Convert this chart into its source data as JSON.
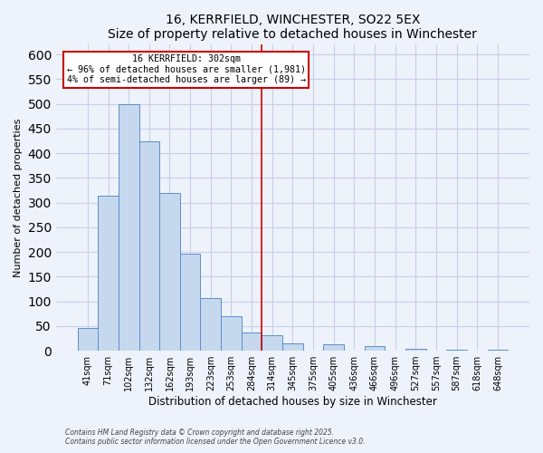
{
  "title": "16, KERRFIELD, WINCHESTER, SO22 5EX",
  "subtitle": "Size of property relative to detached houses in Winchester",
  "xlabel": "Distribution of detached houses by size in Winchester",
  "ylabel": "Number of detached properties",
  "bar_labels": [
    "41sqm",
    "71sqm",
    "102sqm",
    "132sqm",
    "162sqm",
    "193sqm",
    "223sqm",
    "253sqm",
    "284sqm",
    "314sqm",
    "345sqm",
    "375sqm",
    "405sqm",
    "436sqm",
    "466sqm",
    "496sqm",
    "527sqm",
    "557sqm",
    "587sqm",
    "618sqm",
    "648sqm"
  ],
  "bar_values": [
    46,
    314,
    499,
    424,
    320,
    196,
    106,
    69,
    37,
    31,
    14,
    0,
    13,
    0,
    9,
    0,
    4,
    0,
    2,
    0,
    2
  ],
  "bar_color": "#c5d8ee",
  "bar_edge_color": "#5b8fc9",
  "vline_color": "#cc0000",
  "annotation_title": "16 KERRFIELD: 302sqm",
  "annotation_line1": "← 96% of detached houses are smaller (1,981)",
  "annotation_line2": "4% of semi-detached houses are larger (89) →",
  "annotation_box_edge": "#cc0000",
  "ylim": [
    0,
    620
  ],
  "yticks": [
    0,
    50,
    100,
    150,
    200,
    250,
    300,
    350,
    400,
    450,
    500,
    550,
    600
  ],
  "footer1": "Contains HM Land Registry data © Crown copyright and database right 2025.",
  "footer2": "Contains public sector information licensed under the Open Government Licence v3.0.",
  "bg_color": "#eef2fb",
  "grid_color": "#c8cfe8"
}
